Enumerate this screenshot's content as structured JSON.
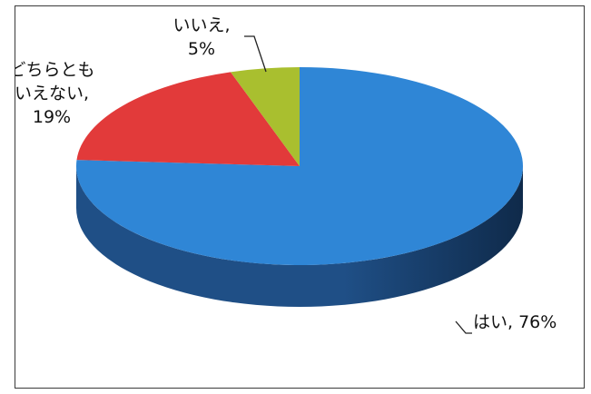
{
  "chart_data": {
    "type": "pie",
    "style": "3d",
    "slices": [
      {
        "label": "はい",
        "value": 76,
        "display": "はい, 76%",
        "color": "#2f86d6",
        "side_color": "#1f4f86"
      },
      {
        "label": "どちらともいえない",
        "value": 19,
        "display_lines": [
          "どちらとも",
          "いえない,",
          "19%"
        ],
        "color": "#e23a3a",
        "side_color": "#8a1f1f"
      },
      {
        "label": "いいえ",
        "value": 5,
        "display_lines": [
          "いいえ,",
          "5%"
        ],
        "color": "#a9bf2f",
        "side_color": "#6b7a1d"
      }
    ],
    "unit": "%"
  }
}
